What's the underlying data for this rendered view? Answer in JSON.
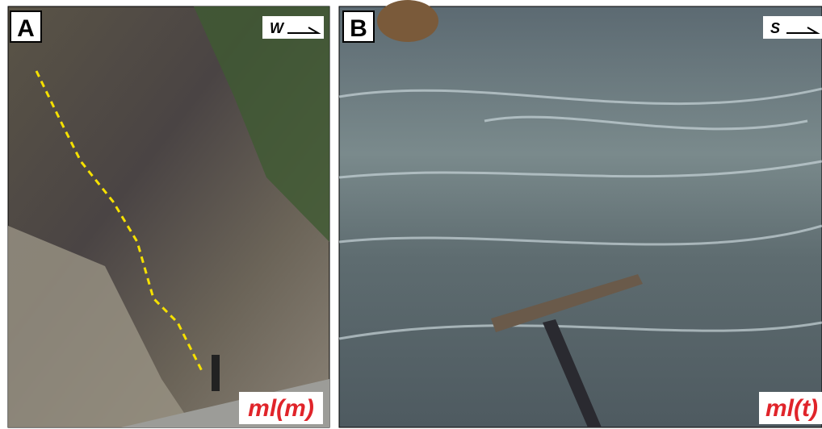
{
  "panels": [
    {
      "label": "A",
      "direction": "W",
      "unit": "ml(m)"
    },
    {
      "label": "B",
      "direction": "S",
      "unit": "ml(t)"
    }
  ]
}
